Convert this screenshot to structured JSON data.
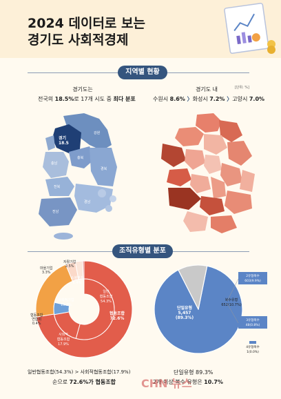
{
  "header": {
    "title_line1": "2024 데이터로 보는",
    "title_line2": "경기도 사회적경제"
  },
  "section1": {
    "label": "지역별 현황",
    "unit": "[단위: %]",
    "left_sub": "경기도는",
    "left_stat": {
      "pre": "전국의 ",
      "pct": "18.5%",
      "mid": "로 17개 시도 중 ",
      "bold": "최다 분포"
    },
    "right_sub": "경기도 내",
    "right_stat": {
      "c1": "수원시 ",
      "v1": "8.6%",
      "c2": "화성시 ",
      "v2": "7.2%",
      "c3": "고양시 ",
      "v3": "7.0%"
    }
  },
  "korea_map": {
    "labels": [
      "경기\n18.5",
      "서울",
      "인천",
      "강원",
      "충북",
      "충남",
      "세종",
      "대전",
      "전북",
      "광주",
      "전남",
      "경북",
      "대구",
      "울산",
      "부산",
      "경남",
      "제주"
    ]
  },
  "section2": {
    "label": "조직유형별 분포"
  },
  "chart_data": [
    {
      "type": "pie",
      "name": "donut",
      "outer": [
        {
          "label": "협동조합",
          "value": 72.6
        },
        {
          "label": "사회적기업",
          "value": 21.4
        },
        {
          "label": "마을기업",
          "value": 3.3
        },
        {
          "label": "자활기업",
          "value": 2.5
        },
        {
          "label": "협동조합연합회",
          "value": 0.4
        }
      ],
      "inner": [
        {
          "label": "일반협동조합",
          "value": 54.3
        },
        {
          "label": "사회적협동조합",
          "value": 17.9
        },
        {
          "label": "소셜벤처",
          "value": 6.4
        }
      ],
      "slice_labels": {
        "coop": "협동조합\n72.6%",
        "general": "일반\n협동조합\n54.3%",
        "social_coop": "사회적\n협동조합\n17.9%",
        "social_ent": "사회적기업\n15.3%",
        "venture": "소셜벤처\n6.4%"
      },
      "callouts": {
        "village": "마을기업\n3.3%",
        "selfsup": "자활기업\n2.5%",
        "federation": "협동조합\n연합회\n0.4%"
      }
    },
    {
      "type": "pie",
      "name": "pie",
      "slices": [
        {
          "label": "단일유형",
          "value": 89.3,
          "count": "5,457"
        },
        {
          "label": "복수유형",
          "value": 10.7,
          "count": "652"
        }
      ],
      "labels": {
        "single": "단일유형\n5,457\n(89.3%)",
        "multi": "복수유형\n652(10.7%)"
      },
      "legend": {
        "two": "2유형복수\n603(9.9%)",
        "three": "3유형복수\n48(0.8%)",
        "four": "4유형복수\n1(0.0%)"
      }
    }
  ],
  "footer": {
    "left1": "일반협동조합(54.3%) > 사회적협동조합(17.9%)",
    "left2_pre": "순으로 ",
    "left2_pct": "72.6%",
    "left2_post": "가 협동조합",
    "right1": "단일유형 89.3%",
    "right2_pre": "2개 이상 복수 유형은 ",
    "right2_pct": "10.7%"
  },
  "watermark": {
    "text": "CHN 뉴스"
  },
  "colors": {
    "navy": "#35557e",
    "red": "#e25d4b",
    "orange": "#f2a145",
    "blue": "#5b85c6"
  }
}
